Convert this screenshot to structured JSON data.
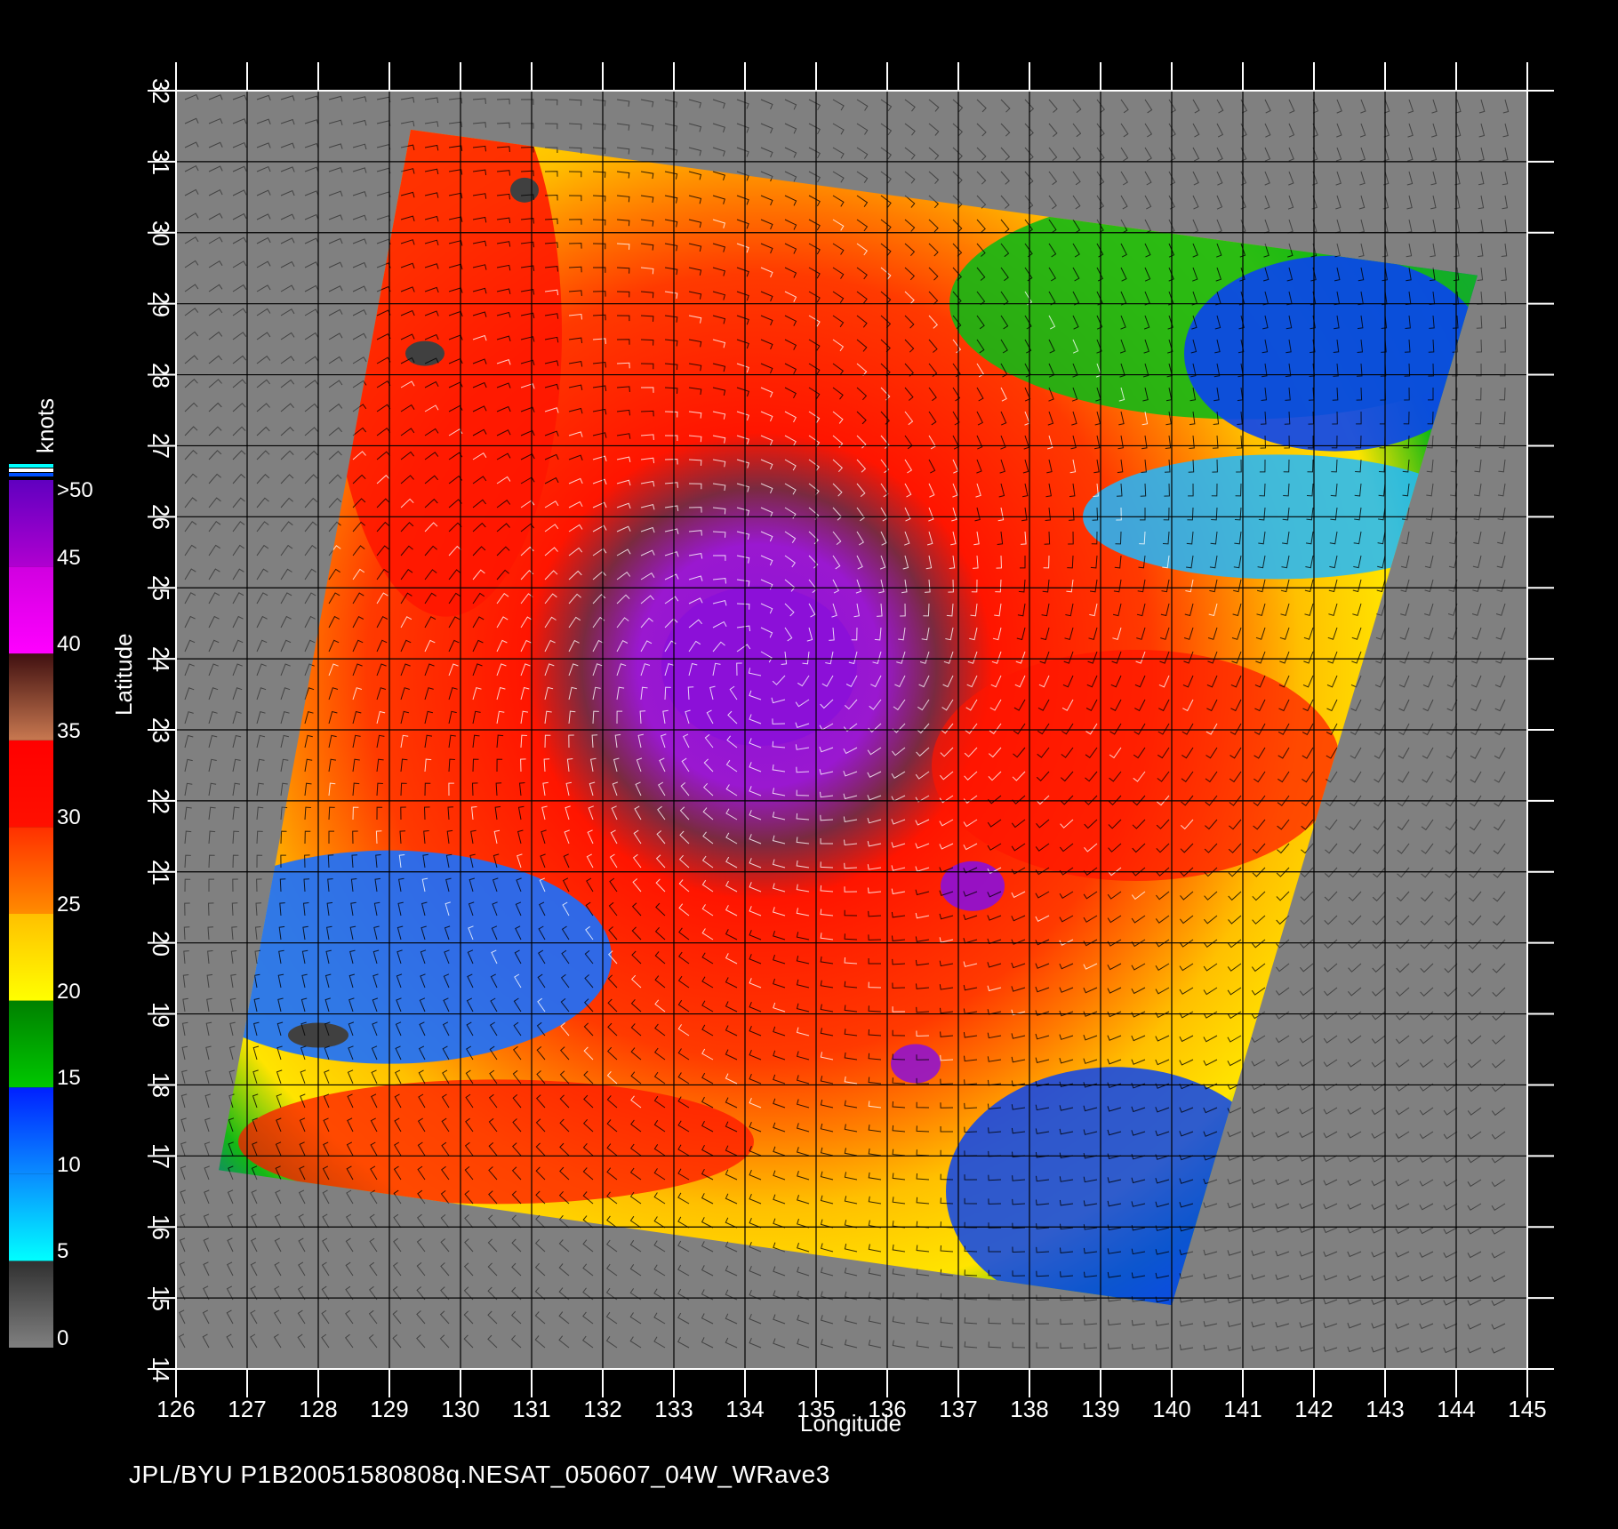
{
  "map": {
    "xlabel": "Longitude",
    "ylabel": "Latitude",
    "xlim": [
      126,
      145
    ],
    "ylim": [
      14,
      32
    ],
    "x_ticks": [
      "126",
      "127",
      "128",
      "129",
      "130",
      "131",
      "132",
      "133",
      "134",
      "135",
      "136",
      "137",
      "138",
      "139",
      "140",
      "141",
      "142",
      "143",
      "144",
      "145"
    ],
    "y_ticks": [
      "14",
      "15",
      "16",
      "17",
      "18",
      "19",
      "20",
      "21",
      "22",
      "23",
      "24",
      "25",
      "26",
      "27",
      "28",
      "29",
      "30",
      "31",
      "32"
    ],
    "grid": true,
    "background_color": "#808080",
    "swath_corners_lonlat": [
      [
        129.3,
        31.45
      ],
      [
        144.3,
        29.4
      ],
      [
        140.0,
        14.9
      ],
      [
        126.6,
        16.8
      ]
    ],
    "storm_center_lonlat": [
      134.2,
      23.9
    ],
    "colors": {
      "purple": "#8c10d8",
      "magenta": "#e800e8",
      "red": "#ff1500",
      "orange": "#ff7a00",
      "yellow": "#ffd000",
      "green": "#14b814",
      "blue": "#0a44f0",
      "cyan": "#00e8ff",
      "land": "#404040"
    }
  },
  "colorbar": {
    "title": "knots",
    "labels": [
      ">50",
      "45",
      "40",
      "35",
      "30",
      "25",
      "20",
      "15",
      "10",
      "5",
      "0"
    ],
    "stops": [
      {
        "kt": 0,
        "color": "#808080"
      },
      {
        "kt": 5,
        "color": "#303030"
      },
      {
        "kt": 5,
        "color": "#00ffff"
      },
      {
        "kt": 10,
        "color": "#0a8cff"
      },
      {
        "kt": 15,
        "color": "#0020ff"
      },
      {
        "kt": 15,
        "color": "#00c800"
      },
      {
        "kt": 20,
        "color": "#008000"
      },
      {
        "kt": 20,
        "color": "#ffff00"
      },
      {
        "kt": 25,
        "color": "#ffc000"
      },
      {
        "kt": 25,
        "color": "#ff8c00"
      },
      {
        "kt": 30,
        "color": "#ff3000"
      },
      {
        "kt": 30,
        "color": "#ff1000"
      },
      {
        "kt": 35,
        "color": "#ff0000"
      },
      {
        "kt": 35,
        "color": "#c87850"
      },
      {
        "kt": 40,
        "color": "#401010"
      },
      {
        "kt": 40,
        "color": "#ff00ff"
      },
      {
        "kt": 45,
        "color": "#d000e0"
      },
      {
        "kt": 45,
        "color": "#b000d0"
      },
      {
        "kt": 50,
        "color": "#6000c0"
      }
    ]
  },
  "footer": "JPL/BYU  P1B20051580808q.NESAT_050607_04W_WRave3"
}
